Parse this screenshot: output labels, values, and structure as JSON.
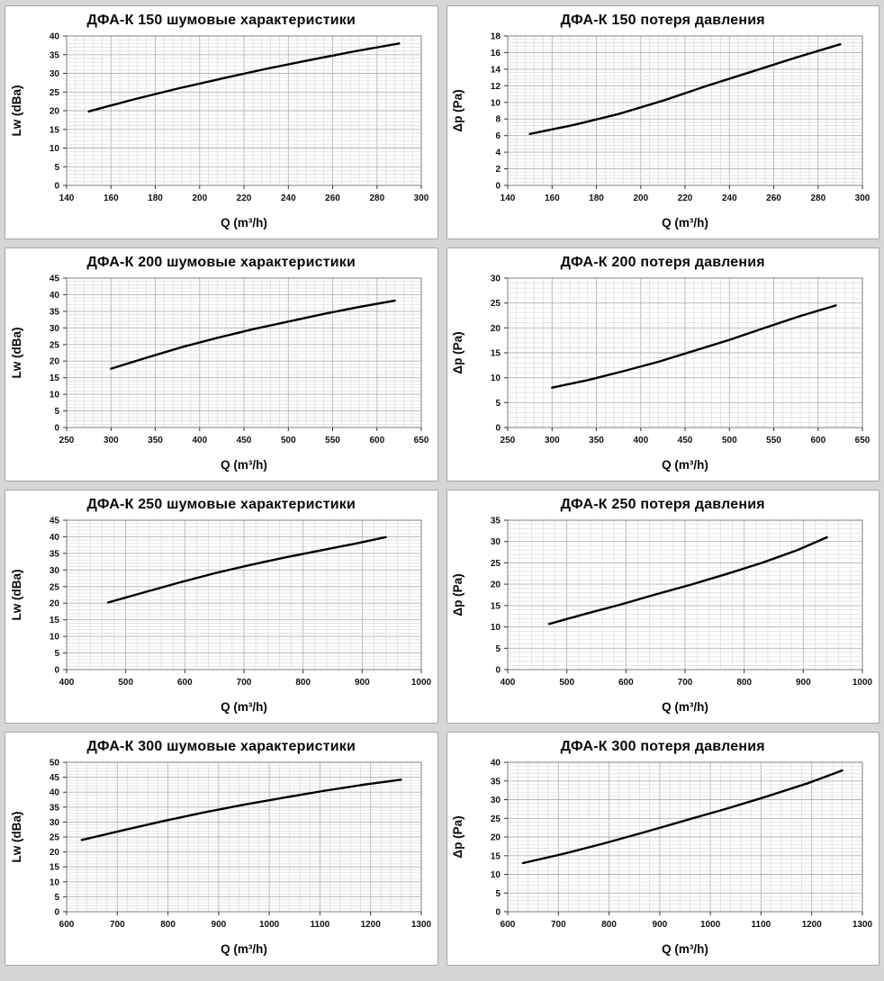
{
  "page": {
    "background_color": "#d6d6d6",
    "panel_border_color": "#a8a8a8",
    "curve_color": "#000000",
    "grid_minor_color": "#dcdcdc",
    "grid_major_color": "#b2b2b2",
    "plot_border_color": "#7f7f7f"
  },
  "chart_data": [
    {
      "type": "line",
      "title": "ДФА-К 150 шумовые характеристики",
      "xlabel": "Q (m³/h)",
      "ylabel": "Lw (dBa)",
      "xlim": [
        140,
        300
      ],
      "xstep": 20,
      "ylim": [
        0,
        40
      ],
      "ystep": 5,
      "grid": true,
      "legend": "none",
      "points": [
        [
          150,
          19.8
        ],
        [
          170,
          23.0
        ],
        [
          190,
          25.9
        ],
        [
          210,
          28.6
        ],
        [
          230,
          31.2
        ],
        [
          250,
          33.6
        ],
        [
          270,
          35.9
        ],
        [
          290,
          38.0
        ]
      ]
    },
    {
      "type": "line",
      "title": "ДФА-К 150 потеря давления",
      "xlabel": "Q (m³/h)",
      "ylabel": "Δp (Pa)",
      "xlim": [
        140,
        300
      ],
      "xstep": 20,
      "ylim": [
        0,
        18
      ],
      "ystep": 2,
      "grid": true,
      "legend": "none",
      "points": [
        [
          150,
          6.2
        ],
        [
          170,
          7.3
        ],
        [
          190,
          8.6
        ],
        [
          210,
          10.2
        ],
        [
          230,
          12.0
        ],
        [
          250,
          13.7
        ],
        [
          270,
          15.4
        ],
        [
          290,
          17.0
        ]
      ]
    },
    {
      "type": "line",
      "title": "ДФА-К 200 шумовые характеристики",
      "xlabel": "Q (m³/h)",
      "ylabel": "Lw (dBa)",
      "xlim": [
        250,
        650
      ],
      "xstep": 50,
      "ylim": [
        0,
        45
      ],
      "ystep": 5,
      "grid": true,
      "legend": "none",
      "points": [
        [
          300,
          17.7
        ],
        [
          340,
          21.0
        ],
        [
          380,
          24.2
        ],
        [
          420,
          27.0
        ],
        [
          460,
          29.6
        ],
        [
          500,
          31.9
        ],
        [
          540,
          34.2
        ],
        [
          580,
          36.3
        ],
        [
          620,
          38.2
        ]
      ]
    },
    {
      "type": "line",
      "title": "ДФА-К 200 потеря давления",
      "xlabel": "Q (m³/h)",
      "ylabel": "Δp (Pa)",
      "xlim": [
        250,
        650
      ],
      "xstep": 50,
      "ylim": [
        0,
        30
      ],
      "ystep": 5,
      "grid": true,
      "legend": "none",
      "points": [
        [
          300,
          8.0
        ],
        [
          340,
          9.5
        ],
        [
          380,
          11.3
        ],
        [
          420,
          13.2
        ],
        [
          460,
          15.4
        ],
        [
          500,
          17.6
        ],
        [
          540,
          20.0
        ],
        [
          580,
          22.4
        ],
        [
          620,
          24.5
        ]
      ]
    },
    {
      "type": "line",
      "title": "ДФА-К 250 шумовые характеристики",
      "xlabel": "Q (m³/h)",
      "ylabel": "Lw (dBa)",
      "xlim": [
        400,
        1000
      ],
      "xstep": 100,
      "ylim": [
        0,
        45
      ],
      "ystep": 5,
      "grid": true,
      "legend": "none",
      "points": [
        [
          470,
          20.2
        ],
        [
          530,
          23.2
        ],
        [
          590,
          26.2
        ],
        [
          650,
          29.0
        ],
        [
          710,
          31.5
        ],
        [
          770,
          33.8
        ],
        [
          830,
          35.9
        ],
        [
          890,
          38.0
        ],
        [
          940,
          39.9
        ]
      ]
    },
    {
      "type": "line",
      "title": "ДФА-К 250 потеря давления",
      "xlabel": "Q (m³/h)",
      "ylabel": "Δp (Pa)",
      "xlim": [
        400,
        1000
      ],
      "xstep": 100,
      "ylim": [
        0,
        35
      ],
      "ystep": 5,
      "grid": true,
      "legend": "none",
      "points": [
        [
          470,
          10.7
        ],
        [
          530,
          13.0
        ],
        [
          590,
          15.2
        ],
        [
          650,
          17.6
        ],
        [
          710,
          19.9
        ],
        [
          770,
          22.4
        ],
        [
          830,
          25.0
        ],
        [
          890,
          28.0
        ],
        [
          940,
          31.0
        ]
      ]
    },
    {
      "type": "line",
      "title": "ДФА-К 300 шумовые характеристики",
      "xlabel": "Q (m³/h)",
      "ylabel": "Lw (dBa)",
      "xlim": [
        600,
        1300
      ],
      "xstep": 100,
      "ylim": [
        0,
        50
      ],
      "ystep": 5,
      "grid": true,
      "legend": "none",
      "points": [
        [
          630,
          24.0
        ],
        [
          710,
          27.2
        ],
        [
          790,
          30.3
        ],
        [
          870,
          33.2
        ],
        [
          950,
          35.8
        ],
        [
          1030,
          38.2
        ],
        [
          1110,
          40.5
        ],
        [
          1190,
          42.6
        ],
        [
          1260,
          44.2
        ]
      ]
    },
    {
      "type": "line",
      "title": "ДФА-К 300 потеря давления",
      "xlabel": "Q (m³/h)",
      "ylabel": "Δp (Pa)",
      "xlim": [
        600,
        1300
      ],
      "xstep": 100,
      "ylim": [
        0,
        40
      ],
      "ystep": 5,
      "grid": true,
      "legend": "none",
      "points": [
        [
          630,
          13.0
        ],
        [
          710,
          15.5
        ],
        [
          790,
          18.3
        ],
        [
          870,
          21.3
        ],
        [
          950,
          24.4
        ],
        [
          1030,
          27.5
        ],
        [
          1110,
          30.8
        ],
        [
          1190,
          34.3
        ],
        [
          1260,
          37.8
        ]
      ]
    }
  ]
}
